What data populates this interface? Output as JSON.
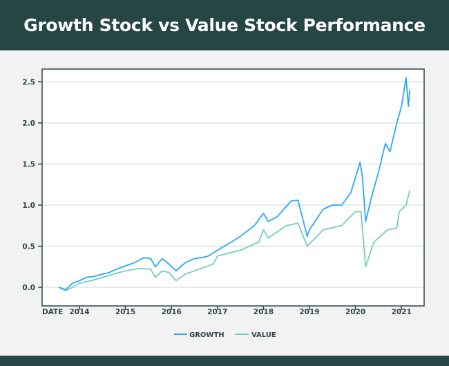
{
  "header": {
    "title": "Growth Stock vs Value Stock Performance"
  },
  "chart_data": {
    "type": "line",
    "title": "Growth Stock vs Value Stock Performance",
    "xlabel": "DATE",
    "ylabel": "",
    "xlim": [
      2013.3,
      2021.5
    ],
    "ylim": [
      -0.2,
      2.65
    ],
    "xticks": [
      "2014",
      "2015",
      "2016",
      "2017",
      "2018",
      "2019",
      "2020",
      "2021"
    ],
    "yticks": [
      "0.0",
      "0.5",
      "1.0",
      "1.5",
      "2.0",
      "2.5"
    ],
    "grid": "horizontal",
    "legend": "bottom-center",
    "series": [
      {
        "name": "GROWTH",
        "color": "#29a8f5",
        "x": [
          2013.55,
          2013.7,
          2013.85,
          2014.0,
          2014.15,
          2014.3,
          2014.5,
          2014.65,
          2014.8,
          2015.0,
          2015.2,
          2015.4,
          2015.55,
          2015.65,
          2015.8,
          2015.95,
          2016.1,
          2016.3,
          2016.5,
          2016.65,
          2016.8,
          2017.0,
          2017.3,
          2017.5,
          2017.8,
          2018.0,
          2018.1,
          2018.3,
          2018.6,
          2018.75,
          2018.95,
          2019.0,
          2019.3,
          2019.5,
          2019.7,
          2019.9,
          2020.1,
          2020.15,
          2020.22,
          2020.35,
          2020.5,
          2020.65,
          2020.75,
          2020.9,
          2021.0,
          2021.1,
          2021.15,
          2021.18
        ],
        "values": [
          0.0,
          -0.03,
          0.05,
          0.08,
          0.12,
          0.13,
          0.16,
          0.18,
          0.22,
          0.26,
          0.3,
          0.36,
          0.35,
          0.25,
          0.35,
          0.28,
          0.2,
          0.3,
          0.35,
          0.36,
          0.38,
          0.45,
          0.55,
          0.62,
          0.75,
          0.9,
          0.8,
          0.86,
          1.05,
          1.06,
          0.62,
          0.7,
          0.95,
          1.0,
          1.0,
          1.15,
          1.52,
          1.35,
          0.8,
          1.1,
          1.4,
          1.75,
          1.65,
          2.0,
          2.2,
          2.55,
          2.2,
          2.4
        ]
      },
      {
        "name": "VALUE",
        "color": "#74cdc4",
        "x": [
          2013.55,
          2013.7,
          2013.85,
          2014.0,
          2014.25,
          2014.5,
          2014.8,
          2015.0,
          2015.3,
          2015.55,
          2015.65,
          2015.8,
          2015.95,
          2016.1,
          2016.3,
          2016.5,
          2016.9,
          2017.0,
          2017.5,
          2017.9,
          2018.0,
          2018.1,
          2018.5,
          2018.75,
          2018.95,
          2019.3,
          2019.7,
          2020.0,
          2020.12,
          2020.22,
          2020.4,
          2020.7,
          2020.9,
          2020.95,
          2021.1,
          2021.18
        ],
        "values": [
          0.0,
          -0.04,
          0.0,
          0.05,
          0.08,
          0.12,
          0.17,
          0.2,
          0.23,
          0.22,
          0.12,
          0.2,
          0.18,
          0.08,
          0.16,
          0.2,
          0.28,
          0.38,
          0.45,
          0.55,
          0.7,
          0.6,
          0.75,
          0.78,
          0.5,
          0.7,
          0.75,
          0.92,
          0.92,
          0.25,
          0.55,
          0.7,
          0.72,
          0.92,
          1.0,
          1.18
        ]
      }
    ]
  }
}
